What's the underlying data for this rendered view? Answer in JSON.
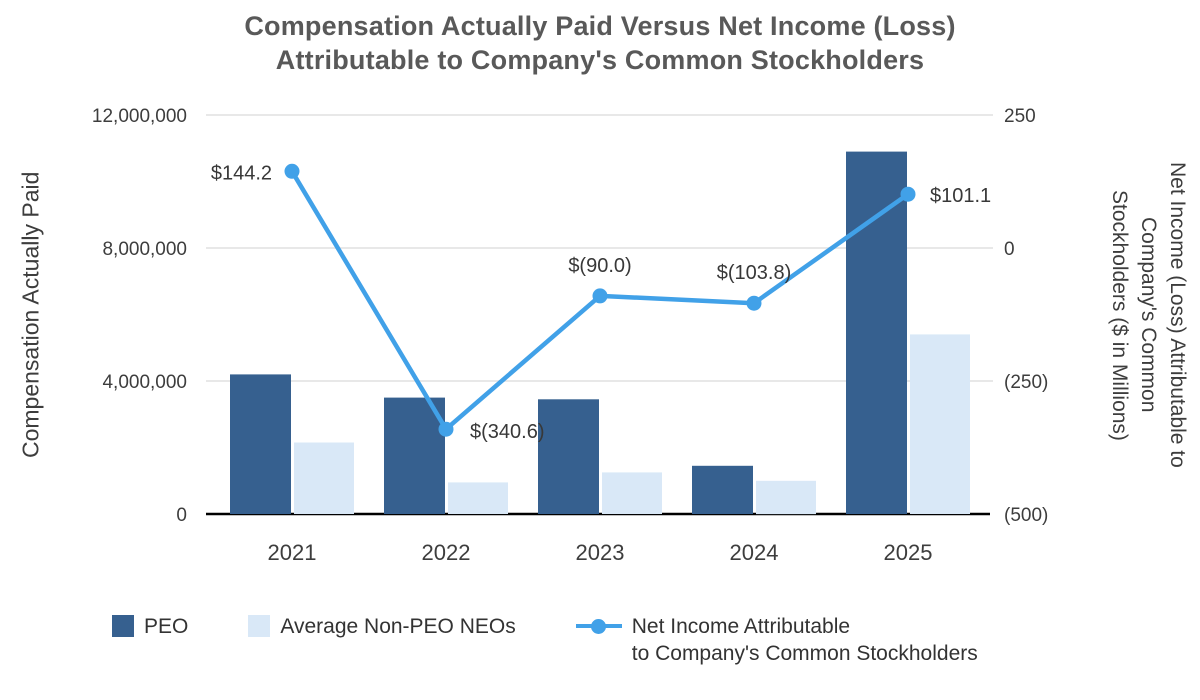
{
  "chart_data": {
    "type": "combo-bar-line",
    "title_lines": [
      "Compensation Actually Paid Versus Net Income (Loss)",
      "Attributable to Company's Common Stockholders"
    ],
    "categories": [
      "2021",
      "2022",
      "2023",
      "2024",
      "2025"
    ],
    "bar_series": [
      {
        "name": "PEO",
        "color": "#36608F",
        "axis": "left",
        "values": [
          4200000,
          3500000,
          3450000,
          1450000,
          10900000
        ]
      },
      {
        "name": "Average Non-PEO NEOs",
        "color": "#D9E8F7",
        "axis": "left",
        "values": [
          2150000,
          950000,
          1250000,
          1000000,
          5400000
        ]
      }
    ],
    "line_series": {
      "name": "Net Income Attributable to Company's Common Stockholders",
      "legend_lines": [
        "Net Income Attributable",
        "to Company's Common Stockholders"
      ],
      "color": "#41A1E8",
      "axis": "right",
      "values": [
        144.2,
        -340.6,
        -90.0,
        -103.8,
        101.1
      ],
      "labels": [
        "$144.2",
        "$(340.6)",
        "$(90.0)",
        "$(103.8)",
        "$101.1"
      ]
    },
    "left_axis": {
      "title": "Compensation Actually Paid",
      "min": 0,
      "max": 12000000,
      "ticks": [
        {
          "value": 0,
          "label": "0"
        },
        {
          "value": 4000000,
          "label": "4,000,000"
        },
        {
          "value": 8000000,
          "label": "8,000,000"
        },
        {
          "value": 12000000,
          "label": "12,000,000"
        }
      ]
    },
    "right_axis": {
      "title_lines": [
        "Net Income (Loss) Attributable to",
        "Company's Common",
        "Stockholders ($ in Millions)"
      ],
      "min": -500,
      "max": 250,
      "ticks": [
        {
          "value": -500,
          "label": "(500)"
        },
        {
          "value": -250,
          "label": "(250)"
        },
        {
          "value": 0,
          "label": "0"
        },
        {
          "value": 250,
          "label": "250"
        }
      ]
    },
    "colors": {
      "gridline": "#E8E8E8",
      "axis_line": "#000000",
      "text": "#3D3D3D",
      "title": "#595959"
    },
    "layout_hints": {
      "grid": "horizontal-only",
      "legend_position": "bottom"
    }
  }
}
